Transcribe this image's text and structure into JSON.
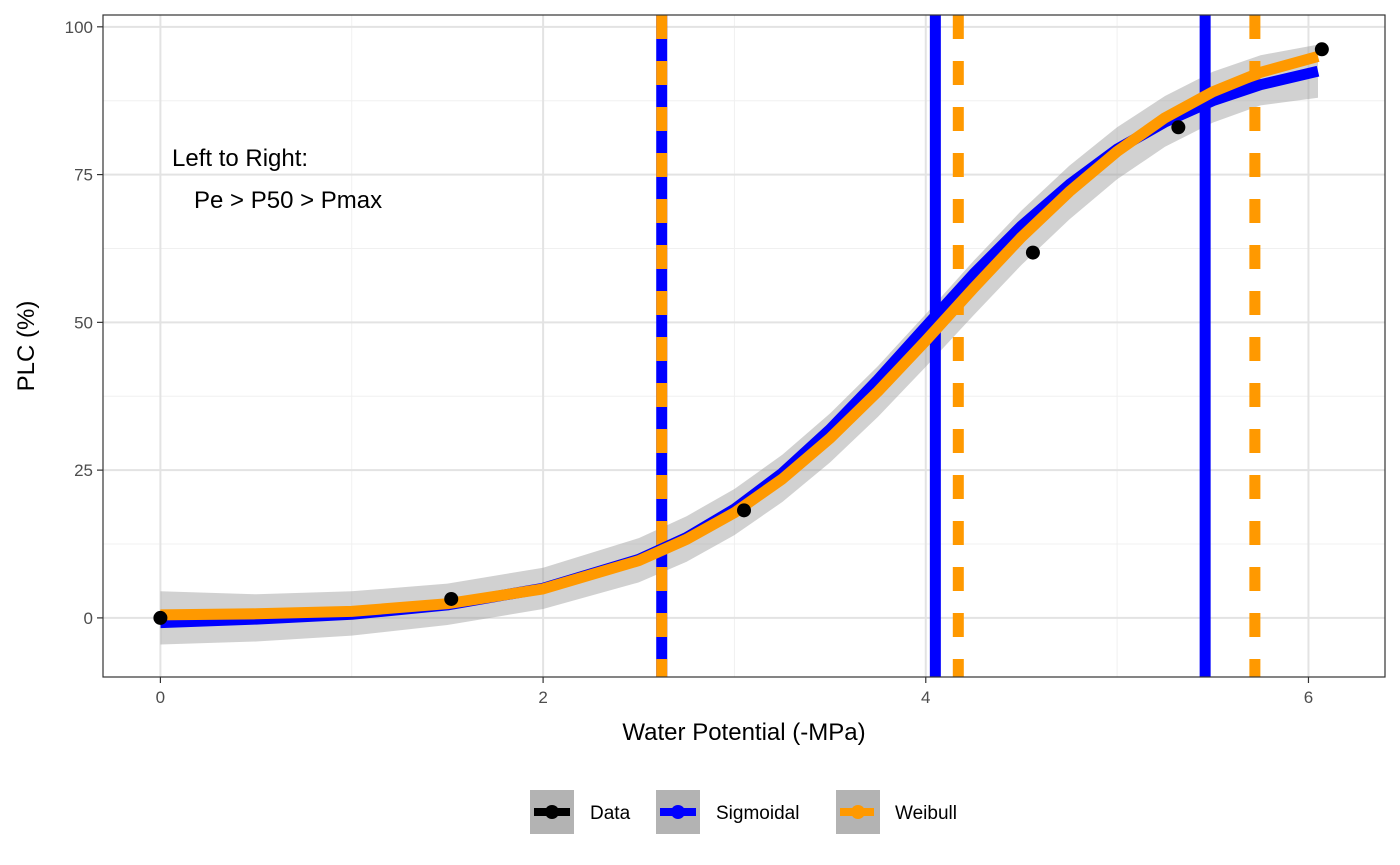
{
  "chart_data": {
    "type": "line",
    "xlabel": "Water Potential (-MPa)",
    "ylabel": "PLC (%)",
    "xlim": [
      -0.3,
      6.4
    ],
    "ylim": [
      -10,
      102
    ],
    "x_ticks": [
      0,
      2,
      4,
      6
    ],
    "y_ticks": [
      0,
      25,
      50,
      75,
      100
    ],
    "grid": true,
    "annotation": [
      "Left to Right:",
      "Pe > P50 > Pmax"
    ],
    "legend_position": "bottom",
    "colors": {
      "data": "#000000",
      "sigmoidal": "#0000ff",
      "weibull": "#ff9900",
      "ribbon": "#999999"
    },
    "series": [
      {
        "name": "Data",
        "kind": "points",
        "x": [
          0,
          1.52,
          3.05,
          4.56,
          5.32,
          6.07
        ],
        "y": [
          0,
          3.2,
          18.2,
          61.8,
          83,
          96.2
        ]
      },
      {
        "name": "Sigmoidal",
        "kind": "curve",
        "x": [
          0,
          0.5,
          1,
          1.5,
          2,
          2.5,
          2.75,
          3,
          3.25,
          3.5,
          3.75,
          4,
          4.25,
          4.5,
          4.75,
          5,
          5.25,
          5.5,
          5.75,
          6.05
        ],
        "y": [
          -0.8,
          -0.2,
          0.6,
          2.2,
          5,
          9.9,
          13.6,
          18.4,
          24.5,
          31.9,
          40.3,
          49.3,
          58.2,
          66.3,
          73.3,
          79.3,
          83.9,
          87.5,
          90.2,
          92.5
        ],
        "vlines": [
          {
            "label": "Pe",
            "x": 2.62
          },
          {
            "label": "P50",
            "x": 4.05
          },
          {
            "label": "Pmax",
            "x": 5.46
          }
        ]
      },
      {
        "name": "Weibull",
        "kind": "curve",
        "x": [
          0,
          0.5,
          1,
          1.5,
          2,
          2.5,
          2.75,
          3,
          3.25,
          3.5,
          3.75,
          4,
          4.25,
          4.5,
          4.75,
          5,
          5.25,
          5.5,
          5.75,
          6.05
        ],
        "y": [
          0.5,
          0.7,
          1.1,
          2.4,
          4.9,
          9.7,
          13.3,
          17.8,
          23.5,
          30.4,
          38.3,
          46.9,
          55.8,
          64.4,
          72.1,
          78.9,
          84.6,
          89,
          92.3,
          95
        ],
        "ribbon_lower": [
          -4.5,
          -4,
          -3,
          -1.2,
          1.5,
          6,
          9.5,
          14,
          19.6,
          26.3,
          34,
          42.5,
          51.2,
          59.7,
          67.4,
          74.2,
          79.7,
          83.8,
          86.7,
          88
        ],
        "ribbon_upper": [
          4.5,
          4,
          4.5,
          5.8,
          8.5,
          13.5,
          17.2,
          21.8,
          27.6,
          34.6,
          42.6,
          51.4,
          60.4,
          68.9,
          76.5,
          83,
          88.3,
          92.4,
          95.2,
          97
        ],
        "vlines": [
          {
            "label": "Pe",
            "x": 2.62
          },
          {
            "label": "P50",
            "x": 4.17
          },
          {
            "label": "Pmax",
            "x": 5.72
          }
        ]
      }
    ]
  }
}
